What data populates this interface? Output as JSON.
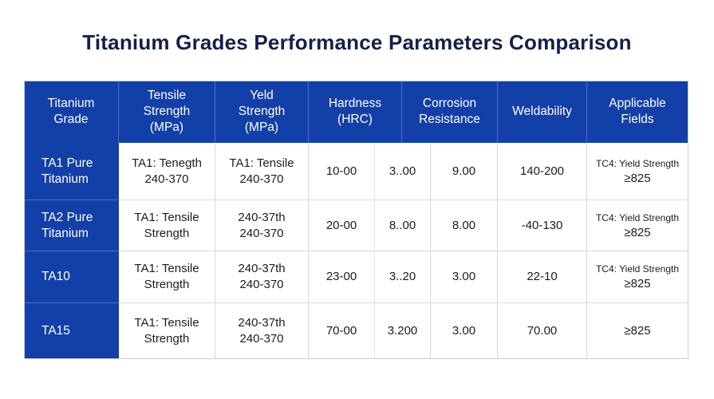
{
  "title": "Titanium Grades Performance Parameters Comparison",
  "headers": [
    "Titanium\nGrade",
    "Tensile\nStrength\n(MPa)",
    "Yeld\nStrength\n(MPa)",
    "Hardness\n(HRC)",
    "Corrosion\nResistance",
    "Weldability",
    "Applicable\nFields"
  ],
  "rows": [
    {
      "grade": "TA1 Pure\nTitanium",
      "tensile": "TA1: Tenegth\n240-370",
      "yield": "TA1: Tensile\n240-370",
      "hardness": "10-00",
      "extra": "3..00",
      "corrosion": "9.00",
      "weldability": "140-200",
      "fields_line1": "TC4: Yield Strength",
      "fields_line2": "≥825"
    },
    {
      "grade": "TA2 Pure\nTitanium",
      "tensile": "TA1: Tensile\nStrength",
      "yield": "240-37th\n240-370",
      "hardness": "20-00",
      "extra": "8..00",
      "corrosion": "8.00",
      "weldability": "-40-130",
      "fields_line1": "TC4: Yield Strength",
      "fields_line2": "≥825"
    },
    {
      "grade": "TA10",
      "tensile": "TA1: Tensile\nStrength",
      "yield": "240-37th\n240-370",
      "hardness": "23-00",
      "extra": "3..20",
      "corrosion": "3.00",
      "weldability": "22-10",
      "fields_line1": "TC4: Yield Strength",
      "fields_line2": "≥825"
    },
    {
      "grade": "TA15",
      "tensile": "TA1: Tensile\nStrength",
      "yield": "240-37th\n240-370",
      "hardness": "70-00",
      "extra": "3.200",
      "corrosion": "3.00",
      "weldability": "70.00",
      "fields_line1": "",
      "fields_line2": "≥825"
    }
  ],
  "colors": {
    "header_bg": "#1240a8",
    "title": "#14204a"
  }
}
